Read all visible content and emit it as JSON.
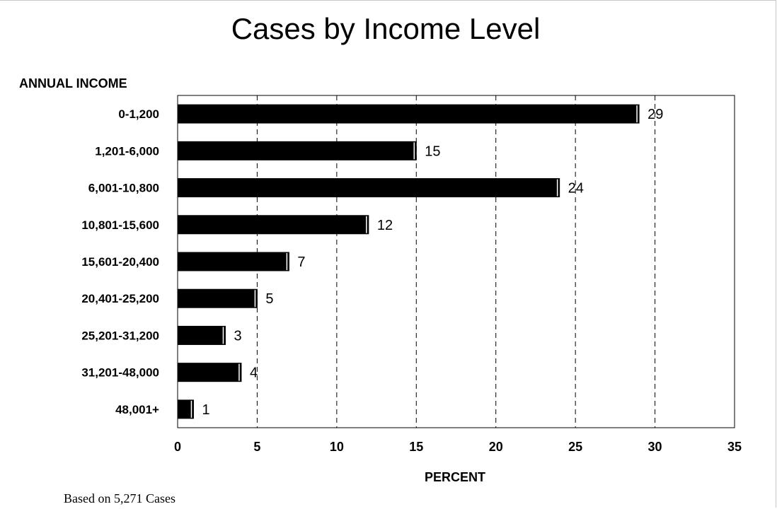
{
  "chart_data": {
    "type": "bar",
    "orientation": "horizontal",
    "title": "Cases by Income Level",
    "ylabel": "ANNUAL INCOME",
    "xlabel": "PERCENT",
    "categories": [
      "0-1,200",
      "1,201-6,000",
      "6,001-10,800",
      "10,801-15,600",
      "15,601-20,400",
      "20,401-25,200",
      "25,201-31,200",
      "31,201-48,000",
      "48,001+"
    ],
    "values": [
      29,
      15,
      24,
      12,
      7,
      5,
      3,
      4,
      1
    ],
    "xlim": [
      0,
      35
    ],
    "xticks": [
      "0",
      "5",
      "10",
      "15",
      "20",
      "25",
      "30",
      "35"
    ],
    "grid": "vertical dashed",
    "bar_color": "#000000",
    "footnote": "Based on 5,271 Cases"
  }
}
